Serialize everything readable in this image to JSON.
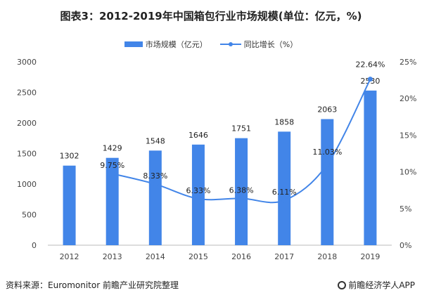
{
  "chart_data": {
    "type": "bar+line",
    "title": "图表3：2012-2019年中国箱包行业市场规模(单位：亿元，%)",
    "categories": [
      "2012",
      "2013",
      "2014",
      "2015",
      "2016",
      "2017",
      "2018",
      "2019"
    ],
    "series": [
      {
        "name": "市场规模（亿元）",
        "type": "bar",
        "axis": "left",
        "values": [
          1302,
          1429,
          1548,
          1646,
          1751,
          1858,
          2063,
          2530
        ],
        "labels": [
          "1302",
          "1429",
          "1548",
          "1646",
          "1751",
          "1858",
          "2063",
          "2530"
        ],
        "color": "#4285e8"
      },
      {
        "name": "同比增长（%）",
        "type": "line",
        "axis": "right",
        "values": [
          null,
          9.75,
          8.33,
          6.33,
          6.38,
          6.11,
          11.03,
          22.64
        ],
        "labels": [
          "",
          "9.75%",
          "8.33%",
          "6.33%",
          "6.38%",
          "6.11%",
          "11.03%",
          "22.64%"
        ],
        "color": "#4285e8"
      }
    ],
    "ylim_left": [
      0,
      3000
    ],
    "yticks_left": [
      "0",
      "500",
      "1000",
      "1500",
      "2000",
      "2500",
      "3000"
    ],
    "ylim_right": [
      0,
      25
    ],
    "yticks_right": [
      "0%",
      "5%",
      "10%",
      "15%",
      "20%",
      "25%"
    ],
    "grid": false,
    "legend": "top-center"
  },
  "footer": {
    "source": "资料来源：Euromonitor 前瞻产业研究院整理",
    "logo": "前瞻经济学人APP"
  }
}
